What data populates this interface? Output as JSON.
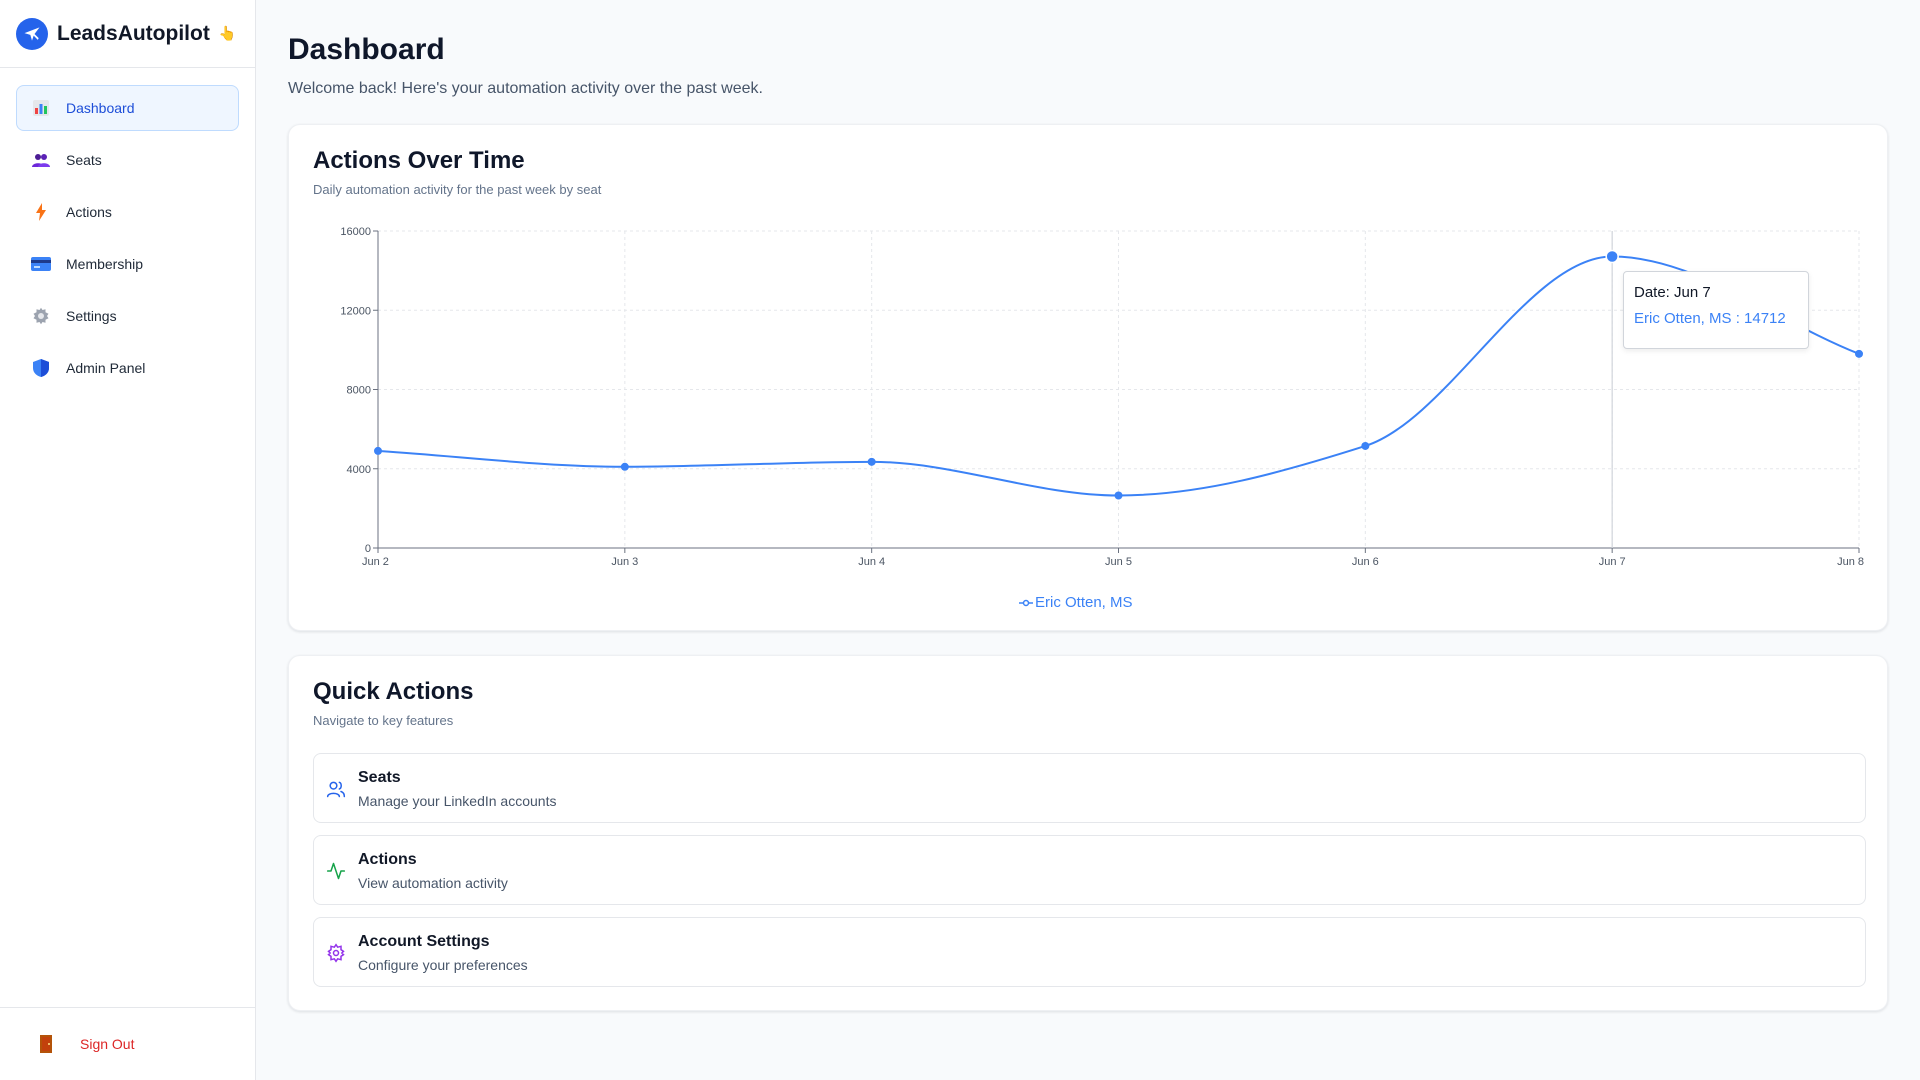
{
  "brand": {
    "name": "LeadsAutopilot",
    "emoji": "👆"
  },
  "sidebar": {
    "items": [
      {
        "label": "Dashboard",
        "icon": "bar-chart-icon"
      },
      {
        "label": "Seats",
        "icon": "users-icon"
      },
      {
        "label": "Actions",
        "icon": "lightning-icon"
      },
      {
        "label": "Membership",
        "icon": "credit-card-icon"
      },
      {
        "label": "Settings",
        "icon": "gear-icon"
      },
      {
        "label": "Admin Panel",
        "icon": "shield-icon"
      }
    ],
    "sign_out": "Sign Out"
  },
  "header": {
    "title": "Dashboard",
    "subtitle": "Welcome back! Here's your automation activity over the past week."
  },
  "actions_card": {
    "title": "Actions Over Time",
    "subtitle": "Daily automation activity for the past week by seat"
  },
  "chart_data": {
    "type": "line",
    "x": [
      "Jun 2",
      "Jun 3",
      "Jun 4",
      "Jun 5",
      "Jun 6",
      "Jun 7",
      "Jun 8"
    ],
    "series": [
      {
        "name": "Eric Otten, MS",
        "values": [
          4900,
          4100,
          4350,
          2650,
          5150,
          14712,
          9800
        ],
        "color": "#3b82f6"
      }
    ],
    "yticks": [
      "0",
      "4000",
      "8000",
      "12000",
      "16000"
    ],
    "ylim": [
      0,
      16000
    ],
    "grid": true,
    "legend": "bottom-center",
    "tooltip": {
      "date_label": "Date: Jun 7",
      "value_label": "Eric Otten, MS : 14712",
      "index": 5
    }
  },
  "quick_actions": {
    "title": "Quick Actions",
    "subtitle": "Navigate to key features",
    "items": [
      {
        "title": "Seats",
        "desc": "Manage your LinkedIn accounts",
        "icon": "users-icon",
        "color": "#2563eb"
      },
      {
        "title": "Actions",
        "desc": "View automation activity",
        "icon": "activity-icon",
        "color": "#16a34a"
      },
      {
        "title": "Account Settings",
        "desc": "Configure your preferences",
        "icon": "gear-icon",
        "color": "#9333ea"
      }
    ]
  }
}
